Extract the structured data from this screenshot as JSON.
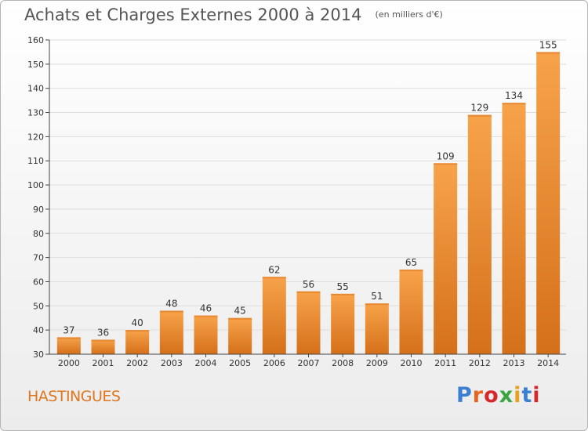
{
  "header": {
    "title": "Achats et Charges Externes 2000 à 2014",
    "unit": "(en milliers d'€)"
  },
  "footer": {
    "commune": "HASTINGUES",
    "logo": "Proxiti"
  },
  "logo_colors": [
    "#3a7fd0",
    "#e8641e",
    "#d6272b",
    "#3aa641",
    "#e8a01e",
    "#3a7fd0",
    "#d6272b"
  ],
  "colors": {
    "bar_light": "#f7a34a",
    "bar_dark": "#d5701a",
    "axis": "#444444",
    "grid": "#dddddd",
    "text": "#333333",
    "accent": "#e0761e"
  },
  "chart_data": {
    "type": "bar",
    "categories": [
      "2000",
      "2001",
      "2002",
      "2003",
      "2004",
      "2005",
      "2006",
      "2007",
      "2008",
      "2009",
      "2010",
      "2011",
      "2012",
      "2013",
      "2014"
    ],
    "values": [
      37,
      36,
      40,
      48,
      46,
      45,
      62,
      56,
      55,
      51,
      65,
      109,
      129,
      134,
      155
    ],
    "ylim": [
      30,
      160
    ],
    "yticks": [
      30,
      40,
      50,
      60,
      70,
      80,
      90,
      100,
      110,
      120,
      130,
      140,
      150,
      160
    ],
    "grid": true,
    "data_labels": true
  }
}
